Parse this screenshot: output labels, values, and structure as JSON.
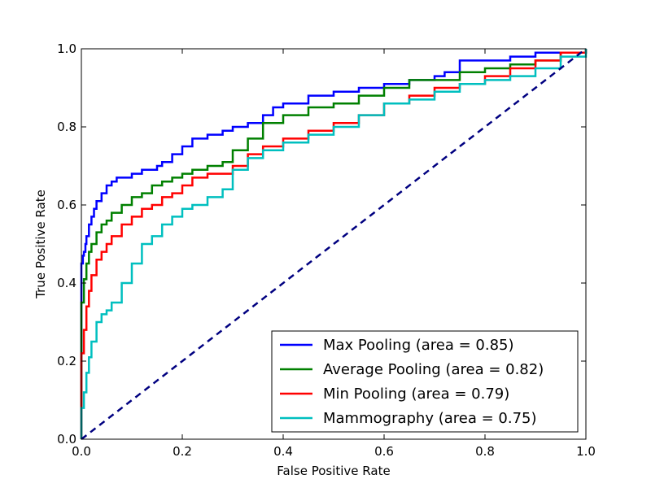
{
  "chart_data": {
    "type": "line",
    "title": "",
    "xlabel": "False Positive Rate",
    "ylabel": "True Positive Rate",
    "xlim": [
      0.0,
      1.0
    ],
    "ylim": [
      0.0,
      1.0
    ],
    "xticks": [
      "0.0",
      "0.2",
      "0.4",
      "0.6",
      "0.8",
      "1.0"
    ],
    "yticks": [
      "0.0",
      "0.2",
      "0.4",
      "0.6",
      "0.8",
      "1.0"
    ],
    "grid": false,
    "legend_position": "lower-right",
    "series": [
      {
        "name": "Max Pooling (area = 0.85)",
        "color": "#0000ff",
        "x": [
          0.0,
          0.0,
          0.003,
          0.005,
          0.008,
          0.01,
          0.015,
          0.02,
          0.025,
          0.03,
          0.04,
          0.05,
          0.06,
          0.07,
          0.08,
          0.1,
          0.12,
          0.14,
          0.15,
          0.16,
          0.18,
          0.2,
          0.22,
          0.25,
          0.28,
          0.3,
          0.33,
          0.36,
          0.38,
          0.4,
          0.45,
          0.5,
          0.55,
          0.6,
          0.65,
          0.7,
          0.72,
          0.75,
          0.8,
          0.85,
          0.9,
          0.95,
          1.0
        ],
        "y": [
          0.0,
          0.45,
          0.47,
          0.48,
          0.5,
          0.52,
          0.55,
          0.57,
          0.59,
          0.61,
          0.63,
          0.65,
          0.66,
          0.67,
          0.67,
          0.68,
          0.69,
          0.69,
          0.7,
          0.71,
          0.73,
          0.75,
          0.77,
          0.78,
          0.79,
          0.8,
          0.81,
          0.83,
          0.85,
          0.86,
          0.88,
          0.89,
          0.9,
          0.91,
          0.92,
          0.93,
          0.94,
          0.97,
          0.97,
          0.98,
          0.99,
          0.99,
          1.0
        ]
      },
      {
        "name": "Average Pooling (area = 0.82)",
        "color": "#008000",
        "x": [
          0.0,
          0.0,
          0.005,
          0.01,
          0.015,
          0.02,
          0.03,
          0.04,
          0.05,
          0.06,
          0.08,
          0.1,
          0.12,
          0.14,
          0.16,
          0.18,
          0.2,
          0.22,
          0.25,
          0.28,
          0.3,
          0.33,
          0.36,
          0.4,
          0.45,
          0.5,
          0.55,
          0.6,
          0.65,
          0.7,
          0.75,
          0.8,
          0.85,
          0.9,
          0.95,
          1.0
        ],
        "y": [
          0.0,
          0.35,
          0.41,
          0.45,
          0.48,
          0.5,
          0.53,
          0.55,
          0.56,
          0.58,
          0.6,
          0.62,
          0.63,
          0.65,
          0.66,
          0.67,
          0.68,
          0.69,
          0.7,
          0.71,
          0.74,
          0.77,
          0.81,
          0.83,
          0.85,
          0.86,
          0.88,
          0.9,
          0.92,
          0.92,
          0.94,
          0.95,
          0.96,
          0.97,
          0.99,
          1.0
        ]
      },
      {
        "name": "Min Pooling (area = 0.79)",
        "color": "#ff0000",
        "x": [
          0.0,
          0.0,
          0.005,
          0.01,
          0.015,
          0.02,
          0.03,
          0.04,
          0.05,
          0.06,
          0.08,
          0.1,
          0.12,
          0.14,
          0.16,
          0.18,
          0.2,
          0.22,
          0.25,
          0.28,
          0.3,
          0.33,
          0.36,
          0.4,
          0.45,
          0.5,
          0.55,
          0.6,
          0.65,
          0.7,
          0.75,
          0.8,
          0.85,
          0.9,
          0.95,
          1.0
        ],
        "y": [
          0.0,
          0.22,
          0.28,
          0.34,
          0.38,
          0.42,
          0.46,
          0.48,
          0.5,
          0.52,
          0.55,
          0.57,
          0.59,
          0.6,
          0.62,
          0.63,
          0.65,
          0.67,
          0.68,
          0.68,
          0.7,
          0.73,
          0.75,
          0.77,
          0.79,
          0.81,
          0.83,
          0.86,
          0.88,
          0.9,
          0.91,
          0.93,
          0.95,
          0.97,
          0.99,
          1.0
        ]
      },
      {
        "name": "Mammography (area = 0.75)",
        "color": "#00bfbf",
        "x": [
          0.0,
          0.0,
          0.005,
          0.01,
          0.015,
          0.02,
          0.03,
          0.04,
          0.05,
          0.06,
          0.08,
          0.1,
          0.12,
          0.14,
          0.16,
          0.18,
          0.2,
          0.22,
          0.25,
          0.28,
          0.3,
          0.33,
          0.36,
          0.4,
          0.45,
          0.5,
          0.55,
          0.6,
          0.65,
          0.7,
          0.75,
          0.8,
          0.85,
          0.9,
          0.95,
          1.0
        ],
        "y": [
          0.0,
          0.08,
          0.12,
          0.17,
          0.21,
          0.25,
          0.3,
          0.32,
          0.33,
          0.35,
          0.4,
          0.45,
          0.5,
          0.52,
          0.55,
          0.57,
          0.59,
          0.6,
          0.62,
          0.64,
          0.69,
          0.72,
          0.74,
          0.76,
          0.78,
          0.8,
          0.83,
          0.86,
          0.87,
          0.89,
          0.91,
          0.92,
          0.93,
          0.95,
          0.98,
          1.0
        ]
      },
      {
        "name": "",
        "color": "#000080",
        "dashed": true,
        "x": [
          0.0,
          1.0
        ],
        "y": [
          0.0,
          1.0
        ]
      }
    ]
  }
}
